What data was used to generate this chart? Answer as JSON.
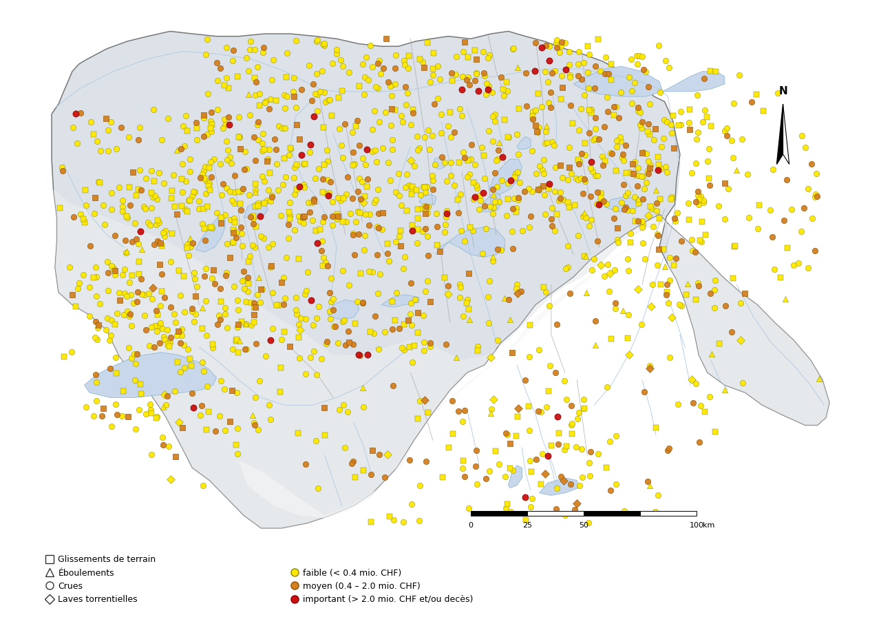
{
  "lon_min": 5.96,
  "lon_max": 10.49,
  "lat_min": 45.82,
  "lat_max": 47.81,
  "lat_ref": 46.8,
  "land_color_north": "#dce0e4",
  "land_color_alps": "#f0f0f0",
  "water_color": "#c8d8ea",
  "river_color": "#aec8e0",
  "border_color": "#888888",
  "canton_border_color": "#999999",
  "background_color": "#ffffff",
  "colors": {
    "faible": "#FFE800",
    "faible_edge": "#888800",
    "moyen": "#D48020",
    "moyen_edge": "#8B5000",
    "important": "#CC1010",
    "important_edge": "#880000"
  },
  "legend_shape_labels": [
    "Glissements de terrain",
    "Éboulements",
    "Crues",
    "Laves torrentielles"
  ],
  "legend_color_labels": [
    "faible (< 0.4 mio. CHF)",
    "moyen (0.4 – 2.0 mio. CHF)",
    "important (> 2.0 mio. CHF et/ou decès)"
  ],
  "marker_size": 6,
  "scalebar_ticks": [
    0,
    25,
    50,
    100
  ],
  "scalebar_unit": "km"
}
